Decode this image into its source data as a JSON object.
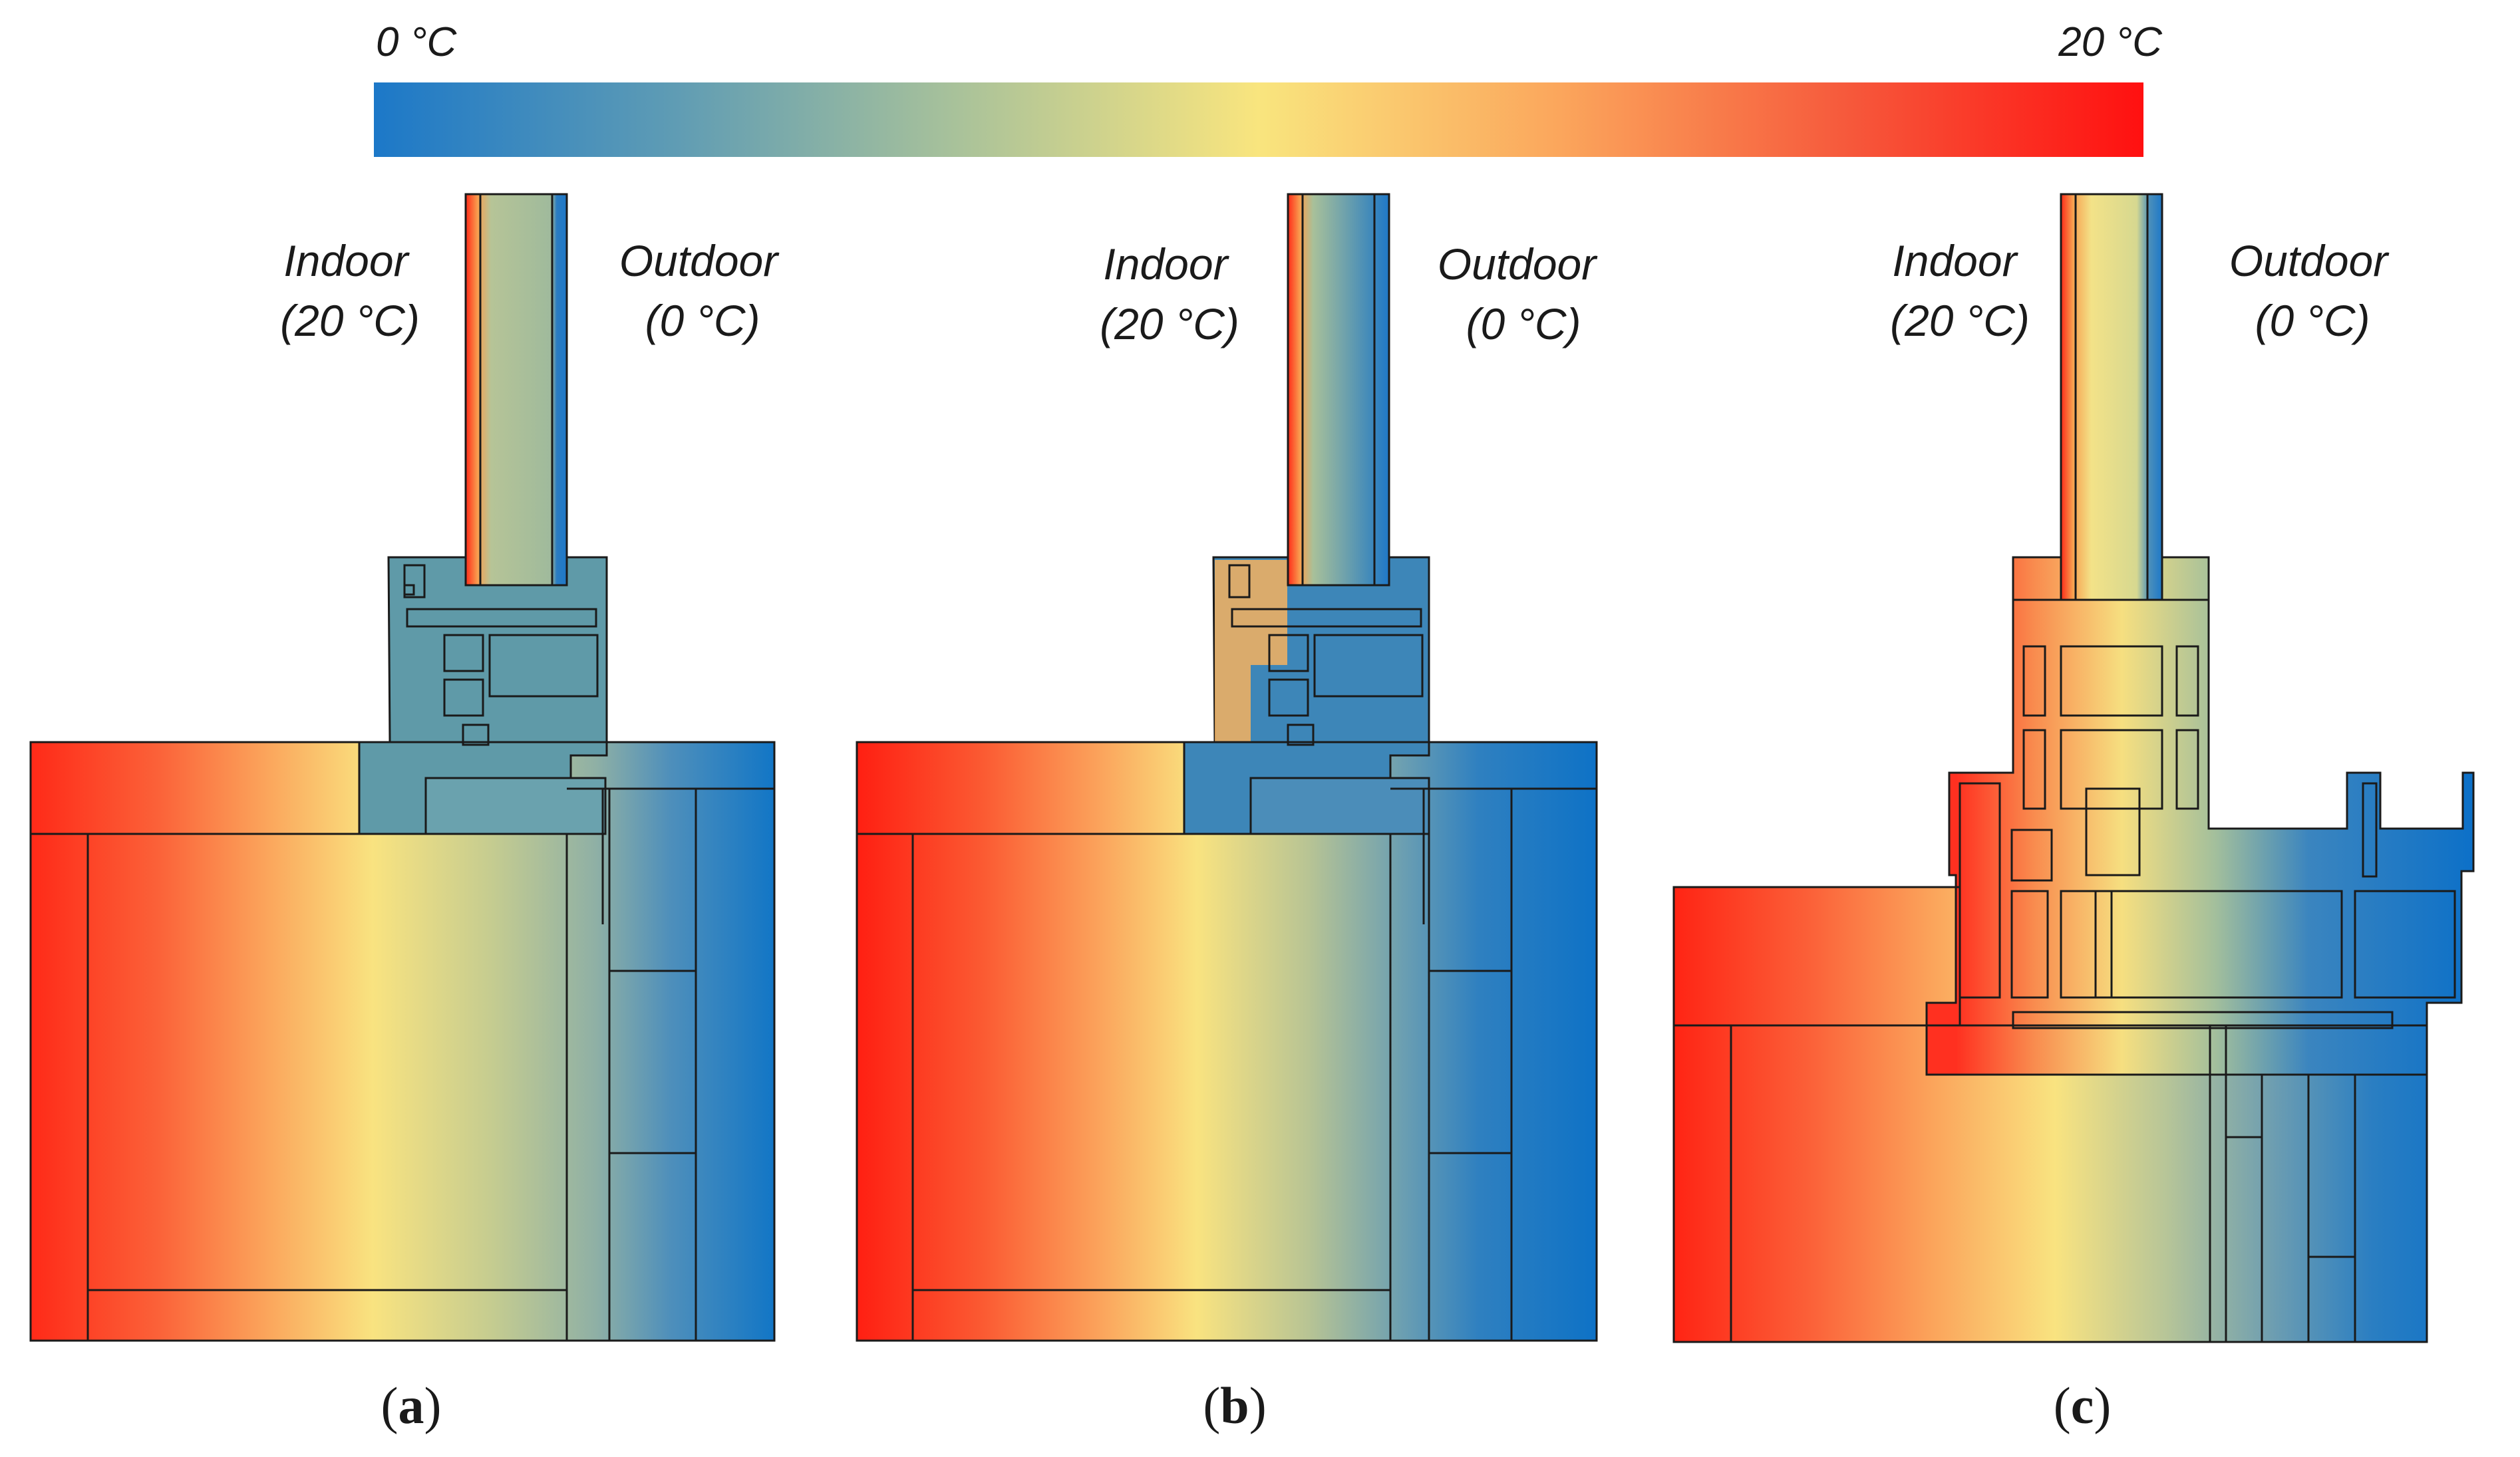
{
  "colorbar": {
    "min_label": "0 °C",
    "max_label": "20 °C",
    "stops": [
      "#1c78c8",
      "#5f9cb4",
      "#a9c29a",
      "#f9e57e",
      "#fba65c",
      "#f65a3c",
      "#ff1010"
    ]
  },
  "panels": [
    {
      "id": "a",
      "caption_open": "(",
      "caption_letter": "a",
      "caption_close": ")",
      "indoor_label": "Indoor",
      "indoor_temp": "(20 °C)",
      "outdoor_label": "Outdoor",
      "outdoor_temp": "(0 °C)"
    },
    {
      "id": "b",
      "caption_open": "(",
      "caption_letter": "b",
      "caption_close": ")",
      "indoor_label": "Indoor",
      "indoor_temp": "(20 °C)",
      "outdoor_label": "Outdoor",
      "outdoor_temp": "(0 °C)"
    },
    {
      "id": "c",
      "caption_open": "(",
      "caption_letter": "c",
      "caption_close": ")",
      "indoor_label": "Indoor",
      "indoor_temp": "(20 °C)",
      "outdoor_label": "Outdoor",
      "outdoor_temp": "(0 °C)"
    }
  ]
}
